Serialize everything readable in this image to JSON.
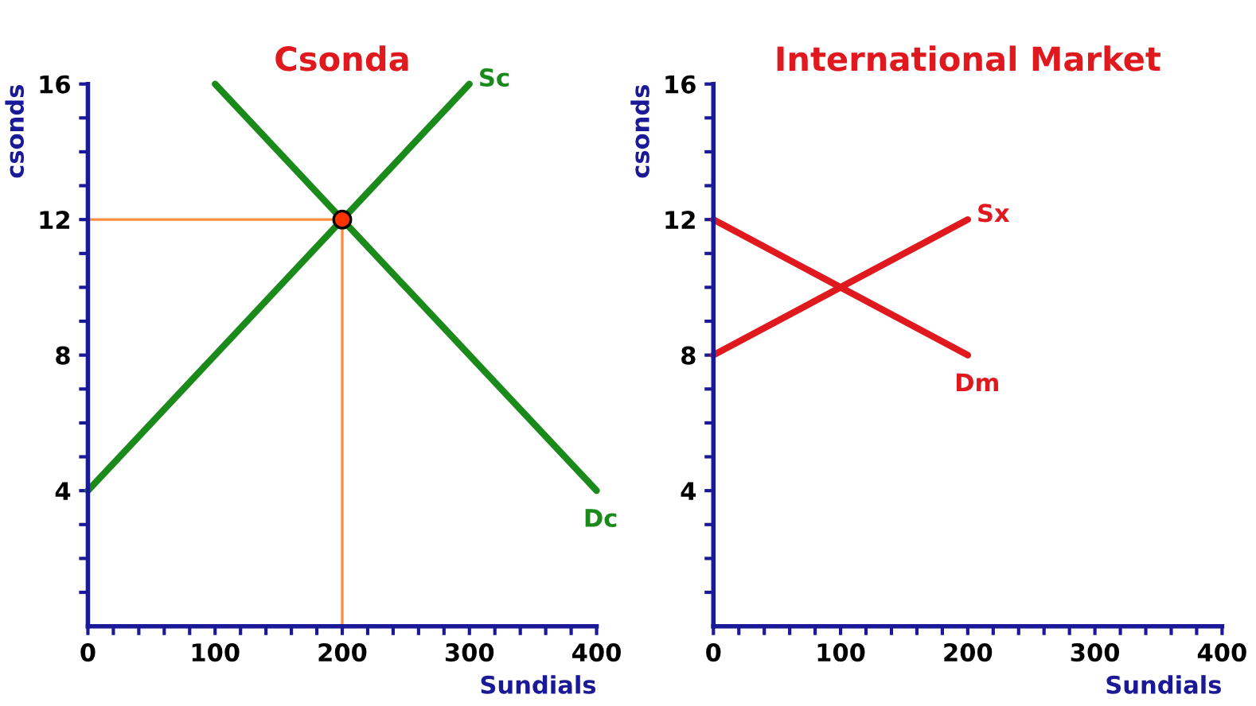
{
  "chart_data": [
    {
      "type": "line",
      "title": "Csonda",
      "xlabel": "Sundials",
      "ylabel": "csonds",
      "xlim": [
        0,
        400
      ],
      "ylim": [
        0,
        16
      ],
      "xticks": [
        0,
        {
          "value": 20,
          "label": null
        },
        {
          "value": 40,
          "label": null
        },
        {
          "value": 60,
          "label": null
        },
        {
          "value": 80,
          "label": null
        },
        100,
        {
          "value": 120,
          "label": null
        },
        {
          "value": 140,
          "label": null
        },
        {
          "value": 160,
          "label": null
        },
        {
          "value": 180,
          "label": null
        },
        200,
        {
          "value": 220,
          "label": null
        },
        {
          "value": 240,
          "label": null
        },
        {
          "value": 260,
          "label": null
        },
        {
          "value": 280,
          "label": null
        },
        300,
        {
          "value": 320,
          "label": null
        },
        {
          "value": 340,
          "label": null
        },
        {
          "value": 360,
          "label": null
        },
        {
          "value": 380,
          "label": null
        },
        400
      ],
      "yticks": [
        {
          "value": 1,
          "label": null
        },
        {
          "value": 2,
          "label": null
        },
        {
          "value": 3,
          "label": null
        },
        4,
        {
          "value": 5,
          "label": null
        },
        {
          "value": 6,
          "label": null
        },
        {
          "value": 7,
          "label": null
        },
        8,
        {
          "value": 9,
          "label": null
        },
        {
          "value": 10,
          "label": null
        },
        {
          "value": 11,
          "label": null
        },
        12,
        {
          "value": 13,
          "label": null
        },
        {
          "value": 14,
          "label": null
        },
        {
          "value": 15,
          "label": null
        },
        16
      ],
      "grid": false,
      "series": [
        {
          "type": "line",
          "color": "#ff8c40",
          "x": [
            0,
            200,
            200
          ],
          "values": [
            12,
            12,
            0
          ]
        },
        {
          "name": "Sc",
          "color": "#1a8a1a",
          "x": [
            0,
            300
          ],
          "values": [
            4,
            16
          ]
        },
        {
          "name": "Dc",
          "color": "#1a8a1a",
          "x": [
            100,
            400
          ],
          "values": [
            16,
            4
          ]
        },
        {
          "type": "scatter",
          "marker": "circle",
          "color": "#ff3300",
          "x": [
            200
          ],
          "values": [
            12
          ]
        }
      ]
    },
    {
      "type": "line",
      "title": "International Market",
      "xlabel": "Sundials",
      "ylabel": "csonds",
      "xlim": [
        0,
        400
      ],
      "ylim": [
        0,
        16
      ],
      "xticks": [
        0,
        {
          "value": 20,
          "label": null
        },
        {
          "value": 40,
          "label": null
        },
        {
          "value": 60,
          "label": null
        },
        {
          "value": 80,
          "label": null
        },
        100,
        {
          "value": 120,
          "label": null
        },
        {
          "value": 140,
          "label": null
        },
        {
          "value": 160,
          "label": null
        },
        {
          "value": 180,
          "label": null
        },
        200,
        {
          "value": 220,
          "label": null
        },
        {
          "value": 240,
          "label": null
        },
        {
          "value": 260,
          "label": null
        },
        {
          "value": 280,
          "label": null
        },
        300,
        {
          "value": 320,
          "label": null
        },
        {
          "value": 340,
          "label": null
        },
        {
          "value": 360,
          "label": null
        },
        {
          "value": 380,
          "label": null
        },
        400
      ],
      "yticks": [
        {
          "value": 1,
          "label": null
        },
        {
          "value": 2,
          "label": null
        },
        {
          "value": 3,
          "label": null
        },
        4,
        {
          "value": 5,
          "label": null
        },
        {
          "value": 6,
          "label": null
        },
        {
          "value": 7,
          "label": null
        },
        8,
        {
          "value": 9,
          "label": null
        },
        {
          "value": 10,
          "label": null
        },
        {
          "value": 11,
          "label": null
        },
        12,
        {
          "value": 13,
          "label": null
        },
        {
          "value": 14,
          "label": null
        },
        {
          "value": 15,
          "label": null
        },
        16
      ],
      "grid": false,
      "series": [
        {
          "name": "Sx",
          "color": "#e0191e",
          "x": [
            0,
            200
          ],
          "values": [
            8,
            12
          ]
        },
        {
          "name": "Dm",
          "color": "#e0191e",
          "x": [
            0,
            200
          ],
          "values": [
            12,
            8
          ]
        }
      ]
    }
  ]
}
